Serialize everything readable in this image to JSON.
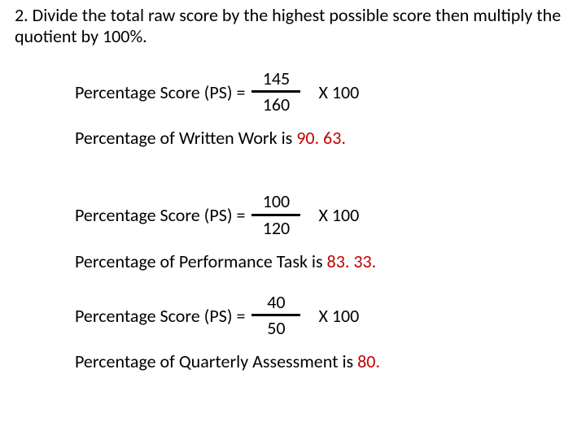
{
  "intro": "2. Divide the total raw score by the highest possible score then multiply the quotient by 100%.",
  "ps_label": "Percentage Score (PS) =",
  "mult": "X 100",
  "rows": [
    {
      "num": "145",
      "den": "160",
      "result_prefix": "Percentage of Written Work is ",
      "result_value": "90. 63."
    },
    {
      "num": "100",
      "den": "120",
      "result_prefix": "Percentage of  Performance Task is ",
      "result_value": "83. 33."
    },
    {
      "num": "40",
      "den": "50",
      "result_prefix": "Percentage of Quarterly Assessment is ",
      "result_value": "80."
    }
  ]
}
